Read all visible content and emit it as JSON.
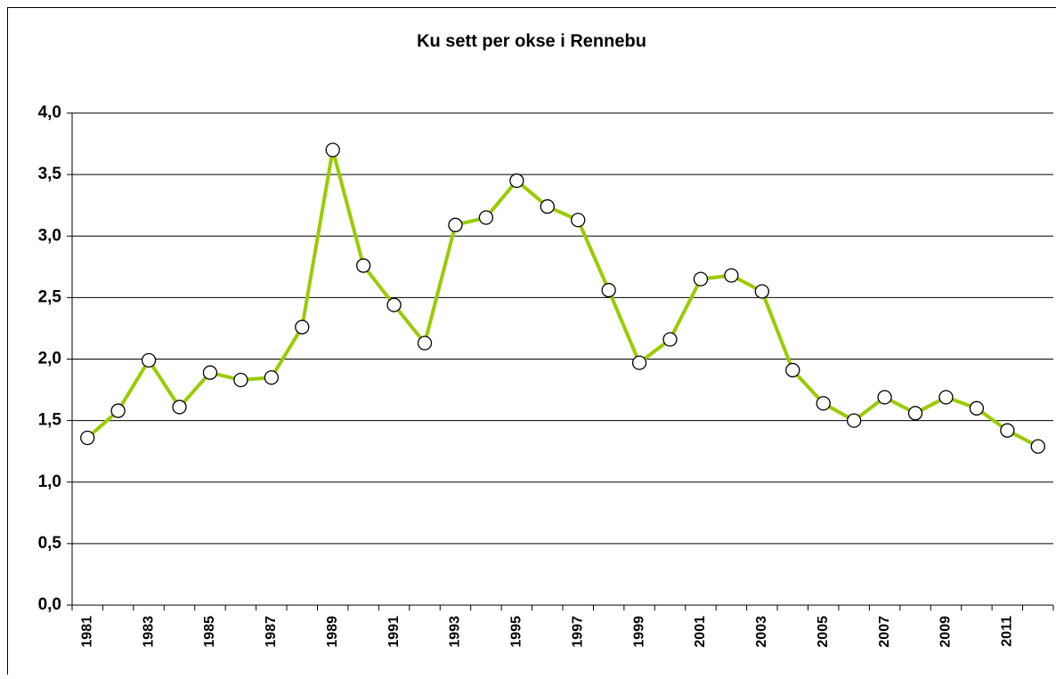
{
  "chart_data": {
    "type": "line",
    "title": "Ku sett per okse i Rennebu",
    "categories": [
      "1981",
      null,
      "1983",
      null,
      "1985",
      null,
      "1987",
      null,
      "1989",
      null,
      "1991",
      null,
      "1993",
      null,
      "1995",
      null,
      "1997",
      null,
      "1999",
      null,
      "2001",
      null,
      "2003",
      null,
      "2005",
      null,
      "2007",
      null,
      "2009",
      null,
      "2011",
      null
    ],
    "series": [
      {
        "color": "#99cc00",
        "marker_fill": "#ffffff",
        "values": [
          1.36,
          1.58,
          1.99,
          1.61,
          1.89,
          1.83,
          1.85,
          2.26,
          3.7,
          2.76,
          2.44,
          2.13,
          3.09,
          3.15,
          3.45,
          3.24,
          3.13,
          2.56,
          1.97,
          2.16,
          2.65,
          2.68,
          2.55,
          1.91,
          1.64,
          1.5,
          1.69,
          1.56,
          1.69,
          1.6,
          1.42,
          1.29
        ]
      }
    ],
    "ylim": [
      0,
      4
    ],
    "yticks": [
      {
        "value": 0,
        "label": "0,0"
      },
      {
        "value": 0.5,
        "label": "0,5"
      },
      {
        "value": 1,
        "label": "1,0"
      },
      {
        "value": 1.5,
        "label": "1,5"
      },
      {
        "value": 2,
        "label": "2,0"
      },
      {
        "value": 2.5,
        "label": "2,5"
      },
      {
        "value": 3,
        "label": "3,0"
      },
      {
        "value": 3.5,
        "label": "3,5"
      },
      {
        "value": 4,
        "label": "4,0"
      }
    ],
    "grid": true
  }
}
